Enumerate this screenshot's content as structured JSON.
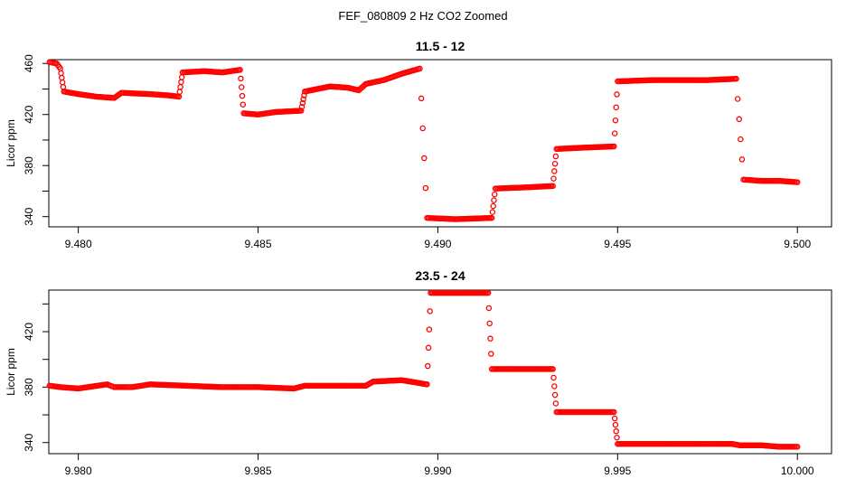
{
  "figure": {
    "title": "FEF_080809  2 Hz CO2 Zoomed"
  },
  "chart_data": [
    {
      "type": "scatter",
      "title": "11.5 - 12",
      "xlabel": "",
      "ylabel": "Licor ppm",
      "xlim": [
        9.47918,
        9.50095
      ],
      "ylim": [
        332,
        463
      ],
      "xticks": [
        9.48,
        9.485,
        9.49,
        9.495,
        9.5
      ],
      "xtick_labels": [
        "9.480",
        "9.485",
        "9.490",
        "9.495",
        "9.500"
      ],
      "yticks": [
        340,
        360,
        380,
        400,
        420,
        440,
        460
      ],
      "ytick_labels": [
        "340",
        "",
        "380",
        "",
        "420",
        "",
        "460"
      ],
      "grid": false,
      "point_color": "#ff0000",
      "series": [
        {
          "values": [
            [
              9.4792,
              461
            ],
            [
              9.4794,
              460
            ],
            [
              9.4795,
              456
            ],
            [
              9.4796,
              438
            ],
            [
              9.48,
              436
            ],
            [
              9.4805,
              434
            ],
            [
              9.481,
              433
            ],
            [
              9.4812,
              437
            ],
            [
              9.482,
              436
            ],
            [
              9.4825,
              435
            ],
            [
              9.4828,
              434
            ],
            [
              9.4829,
              453
            ],
            [
              9.4835,
              454
            ],
            [
              9.484,
              453
            ],
            [
              9.4845,
              455
            ],
            [
              9.4846,
              421
            ],
            [
              9.485,
              420
            ],
            [
              9.4855,
              422
            ],
            [
              9.4862,
              423
            ],
            [
              9.4863,
              438
            ],
            [
              9.487,
              442
            ],
            [
              9.4875,
              441
            ],
            [
              9.4878,
              439
            ],
            [
              9.488,
              444
            ],
            [
              9.4885,
              447
            ],
            [
              9.489,
              452
            ],
            [
              9.4895,
              456
            ],
            [
              9.4897,
              339
            ],
            [
              9.4905,
              338
            ],
            [
              9.4915,
              339
            ],
            [
              9.4916,
              362
            ],
            [
              9.4925,
              363
            ],
            [
              9.4932,
              364
            ],
            [
              9.4933,
              393
            ],
            [
              9.494,
              394
            ],
            [
              9.4949,
              395
            ],
            [
              9.495,
              446
            ],
            [
              9.496,
              447
            ],
            [
              9.4975,
              447
            ],
            [
              9.4983,
              448
            ],
            [
              9.4985,
              369
            ],
            [
              9.499,
              368
            ],
            [
              9.4995,
              368
            ],
            [
              9.5,
              367
            ]
          ]
        }
      ]
    },
    {
      "type": "scatter",
      "title": "23.5 - 24",
      "xlabel": "",
      "ylabel": "Licor ppm",
      "xlim": [
        9.97918,
        10.00095
      ],
      "ylim": [
        332,
        450
      ],
      "xticks": [
        9.98,
        9.985,
        9.99,
        9.995,
        10.0
      ],
      "xtick_labels": [
        "9.980",
        "9.985",
        "9.990",
        "9.995",
        "10.000"
      ],
      "yticks": [
        340,
        360,
        380,
        400,
        420,
        440
      ],
      "ytick_labels": [
        "340",
        "",
        "380",
        "",
        "420",
        ""
      ],
      "grid": false,
      "point_color": "#ff0000",
      "series": [
        {
          "values": [
            [
              9.9792,
              381
            ],
            [
              9.9795,
              380
            ],
            [
              9.98,
              379
            ],
            [
              9.9808,
              382
            ],
            [
              9.981,
              380
            ],
            [
              9.9815,
              380
            ],
            [
              9.982,
              382
            ],
            [
              9.983,
              381
            ],
            [
              9.984,
              380
            ],
            [
              9.985,
              380
            ],
            [
              9.986,
              379
            ],
            [
              9.9863,
              381
            ],
            [
              9.987,
              381
            ],
            [
              9.988,
              381
            ],
            [
              9.9882,
              384
            ],
            [
              9.989,
              385
            ],
            [
              9.9897,
              382
            ],
            [
              9.9898,
              448
            ],
            [
              9.9905,
              448
            ],
            [
              9.9914,
              448
            ],
            [
              9.9915,
              393
            ],
            [
              9.9925,
              393
            ],
            [
              9.9932,
              393
            ],
            [
              9.9933,
              362
            ],
            [
              9.994,
              362
            ],
            [
              9.9949,
              362
            ],
            [
              9.995,
              339
            ],
            [
              9.996,
              339
            ],
            [
              9.997,
              339
            ],
            [
              9.9982,
              339
            ],
            [
              9.9984,
              338
            ],
            [
              9.999,
              338
            ],
            [
              9.9995,
              337
            ],
            [
              10.0,
              337
            ]
          ]
        }
      ]
    }
  ]
}
